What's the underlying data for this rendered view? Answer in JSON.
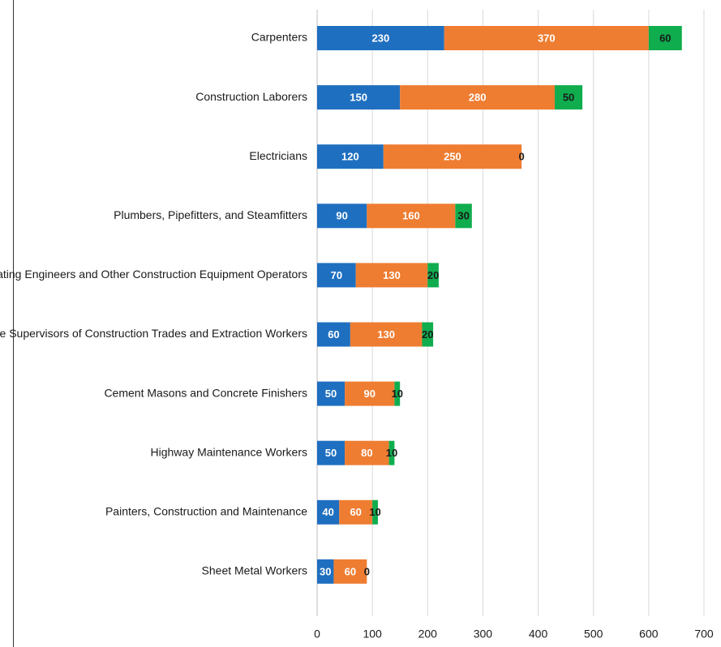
{
  "chart_data": {
    "type": "bar",
    "orientation": "horizontal",
    "stacked": true,
    "categories": [
      "Carpenters",
      "Construction Laborers",
      "Electricians",
      "Plumbers, Pipefitters, and Steamfitters",
      "Operating Engineers and Other Construction Equipment Operators",
      "First-Line Supervisors of Construction Trades and Extraction Workers",
      "Cement Masons and Concrete Finishers",
      "Highway Maintenance Workers",
      "Painters, Construction and Maintenance",
      "Sheet Metal Workers"
    ],
    "series": [
      {
        "values": [
          230,
          150,
          120,
          90,
          70,
          60,
          50,
          50,
          40,
          30
        ],
        "color": "#1f6fc0",
        "label_color": "#ffffff"
      },
      {
        "values": [
          370,
          280,
          250,
          160,
          130,
          130,
          90,
          80,
          60,
          60
        ],
        "color": "#ee7d31",
        "label_color": "#ffffff"
      },
      {
        "values": [
          60,
          50,
          0,
          30,
          20,
          20,
          10,
          10,
          10,
          0
        ],
        "color": "#0fad4e",
        "label_color": "#1a1a1a"
      }
    ],
    "xlim": [
      0,
      700
    ],
    "xticks": [
      0,
      100,
      200,
      300,
      400,
      500,
      600,
      700
    ],
    "grid": true,
    "legend": "none",
    "title": "",
    "xlabel": "",
    "ylabel": ""
  }
}
